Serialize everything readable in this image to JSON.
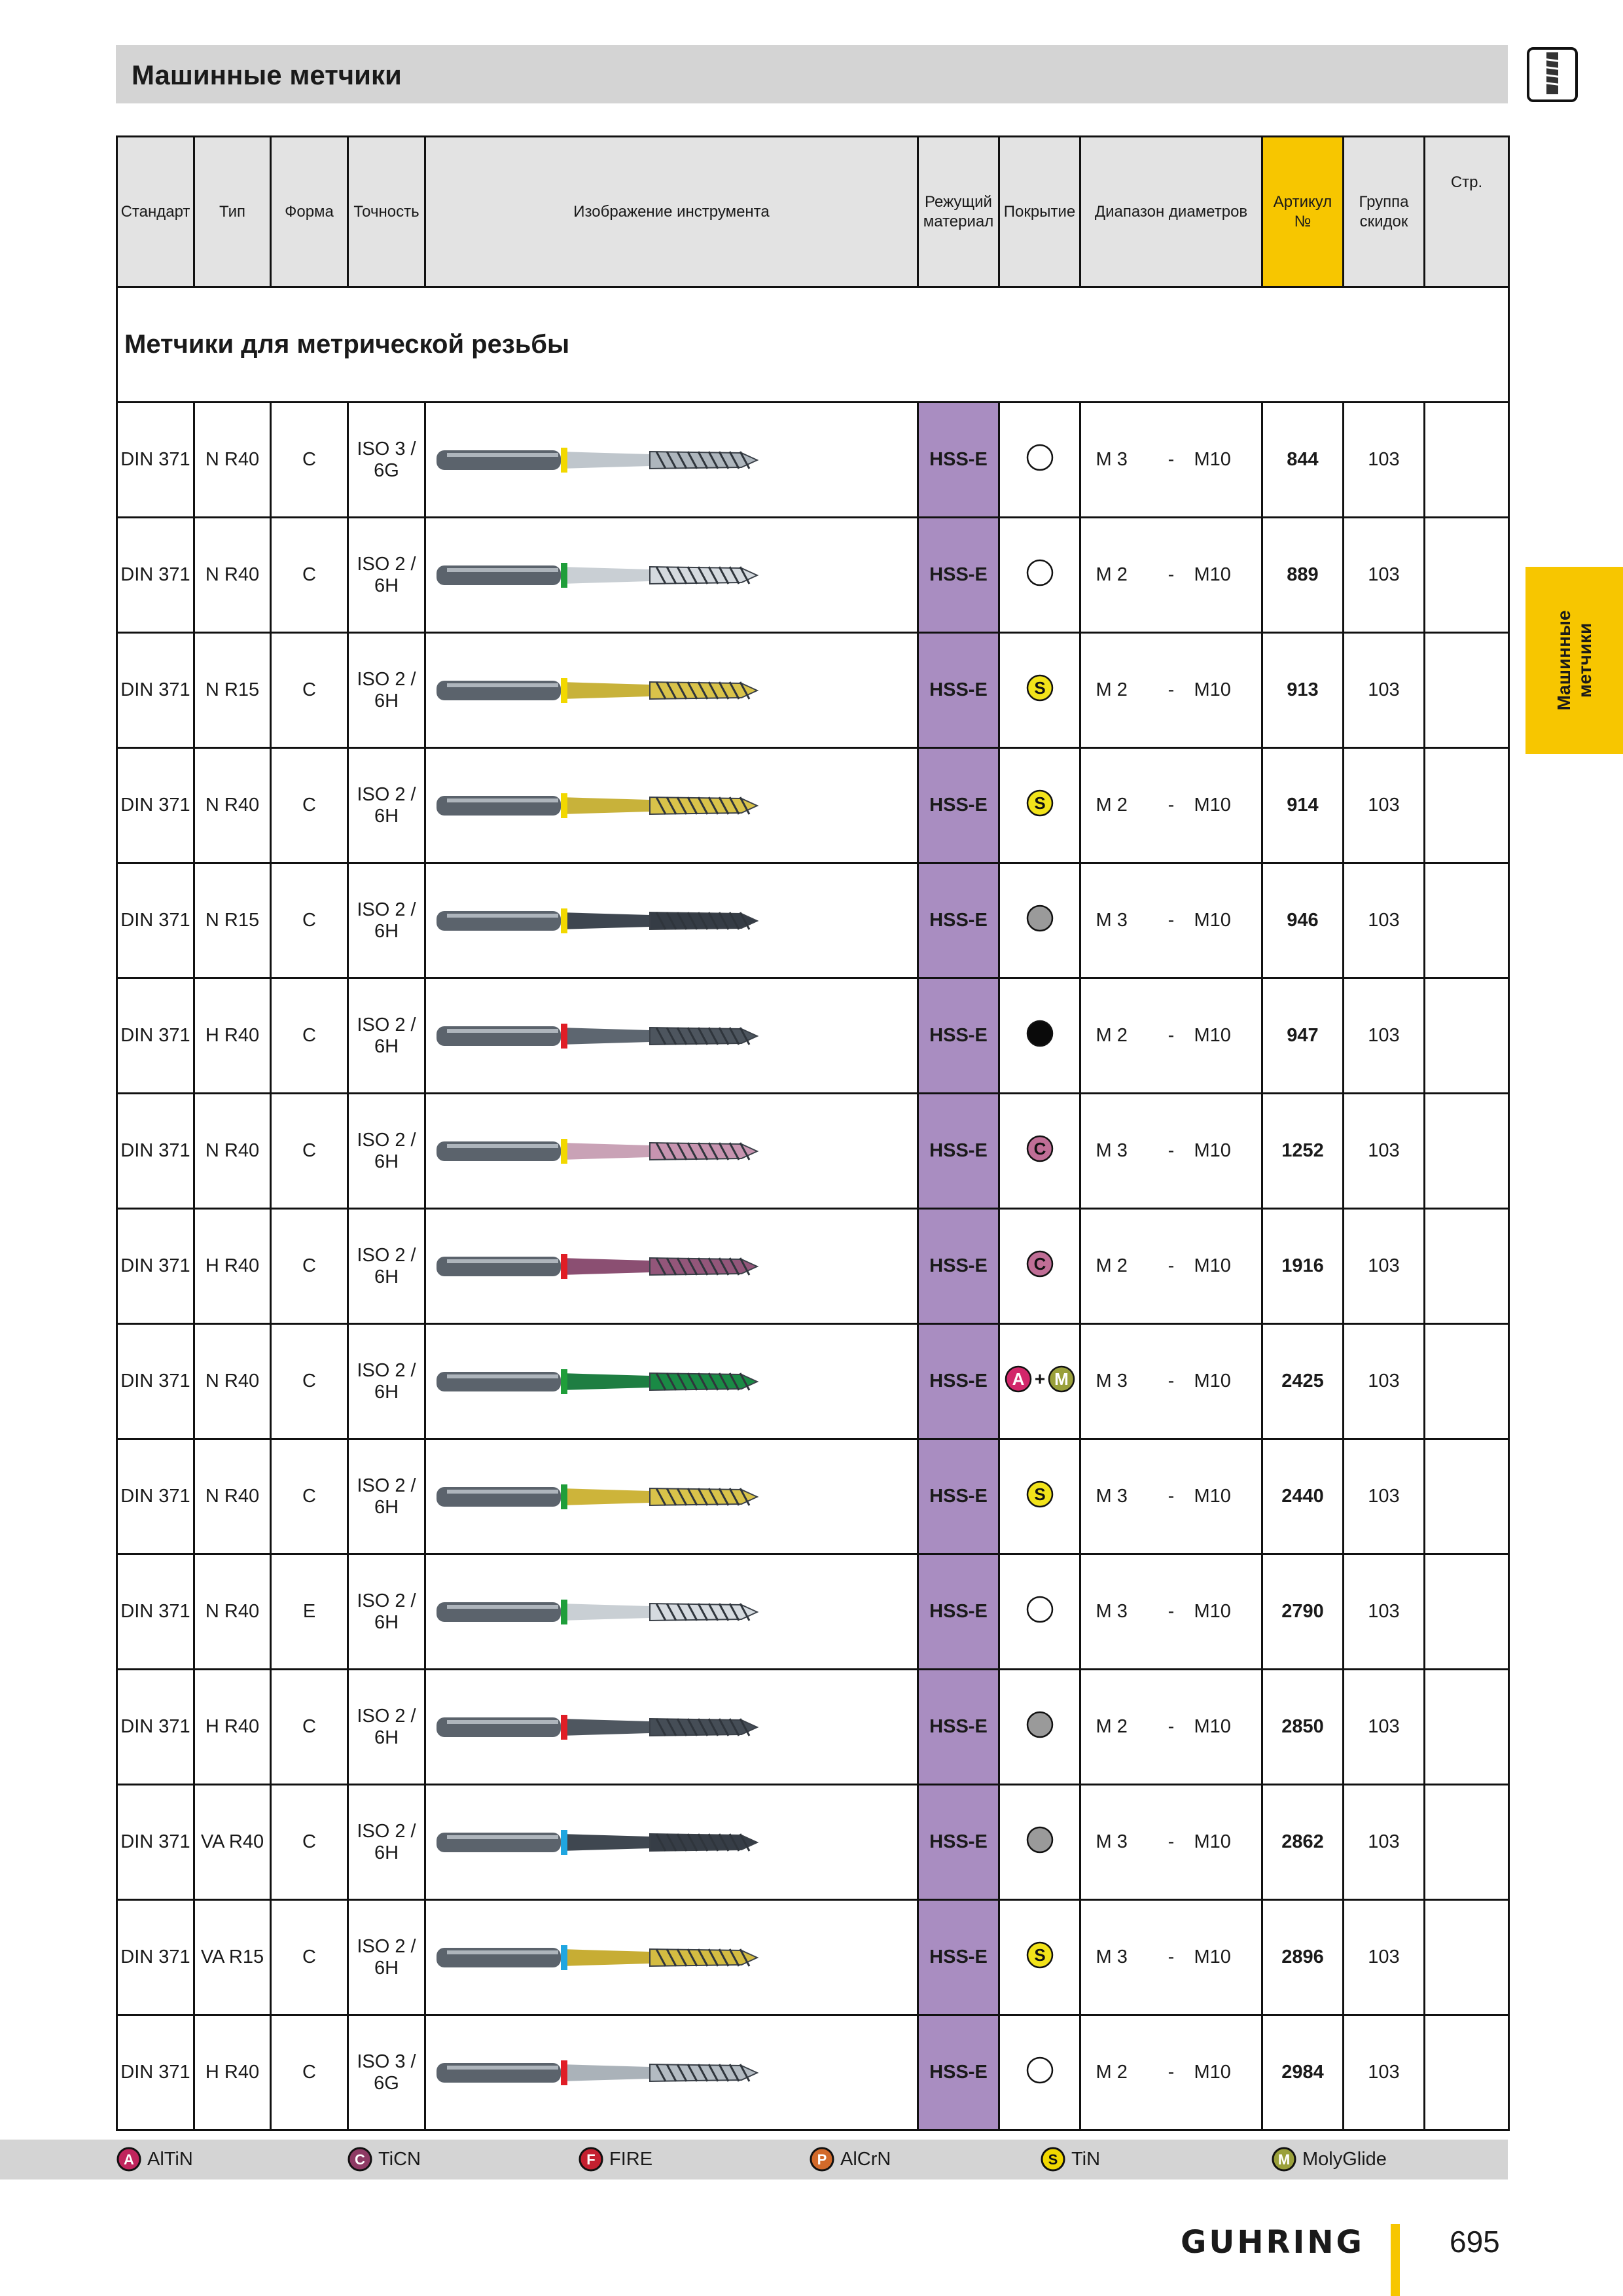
{
  "header": {
    "title": "Машинные метчики"
  },
  "side_tab": {
    "label": "Машинные\nметчики"
  },
  "table": {
    "columns": [
      "Стандарт",
      "Тип",
      "Форма",
      "Точность",
      "Изображение инструмента",
      "Режущий\nматериал",
      "Покрытие",
      "Диапазон диаметров",
      "Артикул\n№",
      "Группа\nскидок",
      "Стр."
    ],
    "section_title": "Метчики для метрической резьбы",
    "rows": [
      {
        "standard": "DIN 371",
        "type": "N R40",
        "form": "C",
        "tolerance": "ISO 3 /\n6G",
        "material": "HSS-E",
        "coating": "bright",
        "range_from": "M 3",
        "range_sep": "-",
        "range_to": "M10",
        "article": "844",
        "group": "103",
        "page": ""
      },
      {
        "standard": "DIN 371",
        "type": "N R40",
        "form": "C",
        "tolerance": "ISO 2 /\n6H",
        "material": "HSS-E",
        "coating": "bright",
        "range_from": "M 2",
        "range_sep": "-",
        "range_to": "M10",
        "article": "889",
        "group": "103",
        "page": ""
      },
      {
        "standard": "DIN 371",
        "type": "N R15",
        "form": "C",
        "tolerance": "ISO 2 /\n6H",
        "material": "HSS-E",
        "coating": "S",
        "range_from": "M 2",
        "range_sep": "-",
        "range_to": "M10",
        "article": "913",
        "group": "103",
        "page": ""
      },
      {
        "standard": "DIN 371",
        "type": "N R40",
        "form": "C",
        "tolerance": "ISO 2 /\n6H",
        "material": "HSS-E",
        "coating": "S",
        "range_from": "M 2",
        "range_sep": "-",
        "range_to": "M10",
        "article": "914",
        "group": "103",
        "page": ""
      },
      {
        "standard": "DIN 371",
        "type": "N R15",
        "form": "C",
        "tolerance": "ISO 2 /\n6H",
        "material": "HSS-E",
        "coating": "grey",
        "range_from": "M 3",
        "range_sep": "-",
        "range_to": "M10",
        "article": "946",
        "group": "103",
        "page": ""
      },
      {
        "standard": "DIN 371",
        "type": "H R40",
        "form": "C",
        "tolerance": "ISO 2 /\n6H",
        "material": "HSS-E",
        "coating": "black",
        "range_from": "M 2",
        "range_sep": "-",
        "range_to": "M10",
        "article": "947",
        "group": "103",
        "page": ""
      },
      {
        "standard": "DIN 371",
        "type": "N R40",
        "form": "C",
        "tolerance": "ISO 2 /\n6H",
        "material": "HSS-E",
        "coating": "C",
        "range_from": "M 3",
        "range_sep": "-",
        "range_to": "M10",
        "article": "1252",
        "group": "103",
        "page": ""
      },
      {
        "standard": "DIN 371",
        "type": "H R40",
        "form": "C",
        "tolerance": "ISO 2 /\n6H",
        "material": "HSS-E",
        "coating": "C",
        "range_from": "M 2",
        "range_sep": "-",
        "range_to": "M10",
        "article": "1916",
        "group": "103",
        "page": ""
      },
      {
        "standard": "DIN 371",
        "type": "N R40",
        "form": "C",
        "tolerance": "ISO 2 /\n6H",
        "material": "HSS-E",
        "coating": "A+M",
        "range_from": "M 3",
        "range_sep": "-",
        "range_to": "M10",
        "article": "2425",
        "group": "103",
        "page": ""
      },
      {
        "standard": "DIN 371",
        "type": "N R40",
        "form": "C",
        "tolerance": "ISO 2 /\n6H",
        "material": "HSS-E",
        "coating": "S",
        "range_from": "M 3",
        "range_sep": "-",
        "range_to": "M10",
        "article": "2440",
        "group": "103",
        "page": ""
      },
      {
        "standard": "DIN 371",
        "type": "N R40",
        "form": "E",
        "tolerance": "ISO 2 /\n6H",
        "material": "HSS-E",
        "coating": "bright",
        "range_from": "M 3",
        "range_sep": "-",
        "range_to": "M10",
        "article": "2790",
        "group": "103",
        "page": ""
      },
      {
        "standard": "DIN 371",
        "type": "H R40",
        "form": "C",
        "tolerance": "ISO 2 /\n6H",
        "material": "HSS-E",
        "coating": "grey",
        "range_from": "M 2",
        "range_sep": "-",
        "range_to": "M10",
        "article": "2850",
        "group": "103",
        "page": ""
      },
      {
        "standard": "DIN 371",
        "type": "VA R40",
        "form": "C",
        "tolerance": "ISO 2 /\n6H",
        "material": "HSS-E",
        "coating": "grey",
        "range_from": "M 3",
        "range_sep": "-",
        "range_to": "M10",
        "article": "2862",
        "group": "103",
        "page": ""
      },
      {
        "standard": "DIN 371",
        "type": "VA R15",
        "form": "C",
        "tolerance": "ISO 2 /\n6H",
        "material": "HSS-E",
        "coating": "S",
        "range_from": "M 3",
        "range_sep": "-",
        "range_to": "M10",
        "article": "2896",
        "group": "103",
        "page": ""
      },
      {
        "standard": "DIN 371",
        "type": "H R40",
        "form": "C",
        "tolerance": "ISO 3 /\n6G",
        "material": "HSS-E",
        "coating": "bright",
        "range_from": "M 2",
        "range_sep": "-",
        "range_to": "M10",
        "article": "2984",
        "group": "103",
        "page": ""
      }
    ],
    "tool_images": [
      {
        "ring": "#f2d800",
        "body": "#bfc6cc",
        "tip": "#aeb6bd"
      },
      {
        "ring": "#1f9e3a",
        "body": "#c9cfd4",
        "tip": "#d5dadf"
      },
      {
        "ring": "#f2d800",
        "body": "#c8b23a",
        "tip": "#d9c34a"
      },
      {
        "ring": "#f2d800",
        "body": "#c8b23a",
        "tip": "#d9c34a"
      },
      {
        "ring": "#f2d800",
        "body": "#3e4650",
        "tip": "#353c45"
      },
      {
        "ring": "#e01e26",
        "body": "#5d6670",
        "tip": "#4d555e"
      },
      {
        "ring": "#f2d800",
        "body": "#c9a2b6",
        "tip": "#c794b0"
      },
      {
        "ring": "#e01e26",
        "body": "#8b4f72",
        "tip": "#93567a"
      },
      {
        "ring": "#1f9e3a",
        "body": "#1e7e42",
        "tip": "#1a8a45"
      },
      {
        "ring": "#1f9e3a",
        "body": "#cdb43a",
        "tip": "#d9c34a"
      },
      {
        "ring": "#1f9e3a",
        "body": "#c9cfd4",
        "tip": "#d5dadf"
      },
      {
        "ring": "#e01e26",
        "body": "#4f5760",
        "tip": "#454d56"
      },
      {
        "ring": "#20a6e0",
        "body": "#3f4750",
        "tip": "#363d46"
      },
      {
        "ring": "#20a6e0",
        "body": "#c7ad34",
        "tip": "#d4bc42"
      },
      {
        "ring": "#e01e26",
        "body": "#aab2b9",
        "tip": "#b3bbc2"
      }
    ]
  },
  "legend": {
    "items": [
      {
        "letter": "A",
        "label": "AlTiN",
        "color": "#c0245c"
      },
      {
        "letter": "C",
        "label": "TiCN",
        "color": "#8e3a64"
      },
      {
        "letter": "F",
        "label": "FIRE",
        "color": "#c42030"
      },
      {
        "letter": "P",
        "label": "AlCrN",
        "color": "#d26a2a"
      },
      {
        "letter": "S",
        "label": "TiN",
        "color": "#f2d800"
      },
      {
        "letter": "M",
        "label": "MolyGlide",
        "color": "#9aa03a"
      }
    ]
  },
  "footer": {
    "brand": "GUHRING",
    "page_number": "695"
  },
  "colors": {
    "accent": "#f7c600",
    "material_bg": "#a98dc1",
    "header_bg": "#d4d4d4",
    "coating_C": "#c06e96",
    "coating_S": "#f2e31a",
    "coating_grey": "#9a9a9a"
  }
}
